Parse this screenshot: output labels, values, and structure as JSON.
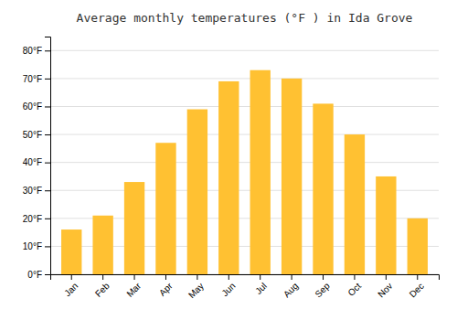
{
  "chart_data": {
    "type": "bar",
    "title": "Average monthly temperatures (°F ) in Ida Grove",
    "categories": [
      "Jan",
      "Feb",
      "Mar",
      "Apr",
      "May",
      "Jun",
      "Jul",
      "Aug",
      "Sep",
      "Oct",
      "Nov",
      "Dec"
    ],
    "values": [
      16,
      21,
      33,
      47,
      59,
      69,
      73,
      70,
      61,
      50,
      35,
      20
    ],
    "color": "#FFC132",
    "ylim": [
      0,
      85
    ],
    "yticks": [
      {
        "value": 0,
        "label": "0°F"
      },
      {
        "value": 10,
        "label": "10°F"
      },
      {
        "value": 20,
        "label": "20°F"
      },
      {
        "value": 30,
        "label": "30°F"
      },
      {
        "value": 40,
        "label": "40°F"
      },
      {
        "value": 50,
        "label": "50°F"
      },
      {
        "value": 60,
        "label": "60°F"
      },
      {
        "value": 70,
        "label": "70°F"
      },
      {
        "value": 80,
        "label": "80°F"
      }
    ],
    "grid": true
  }
}
